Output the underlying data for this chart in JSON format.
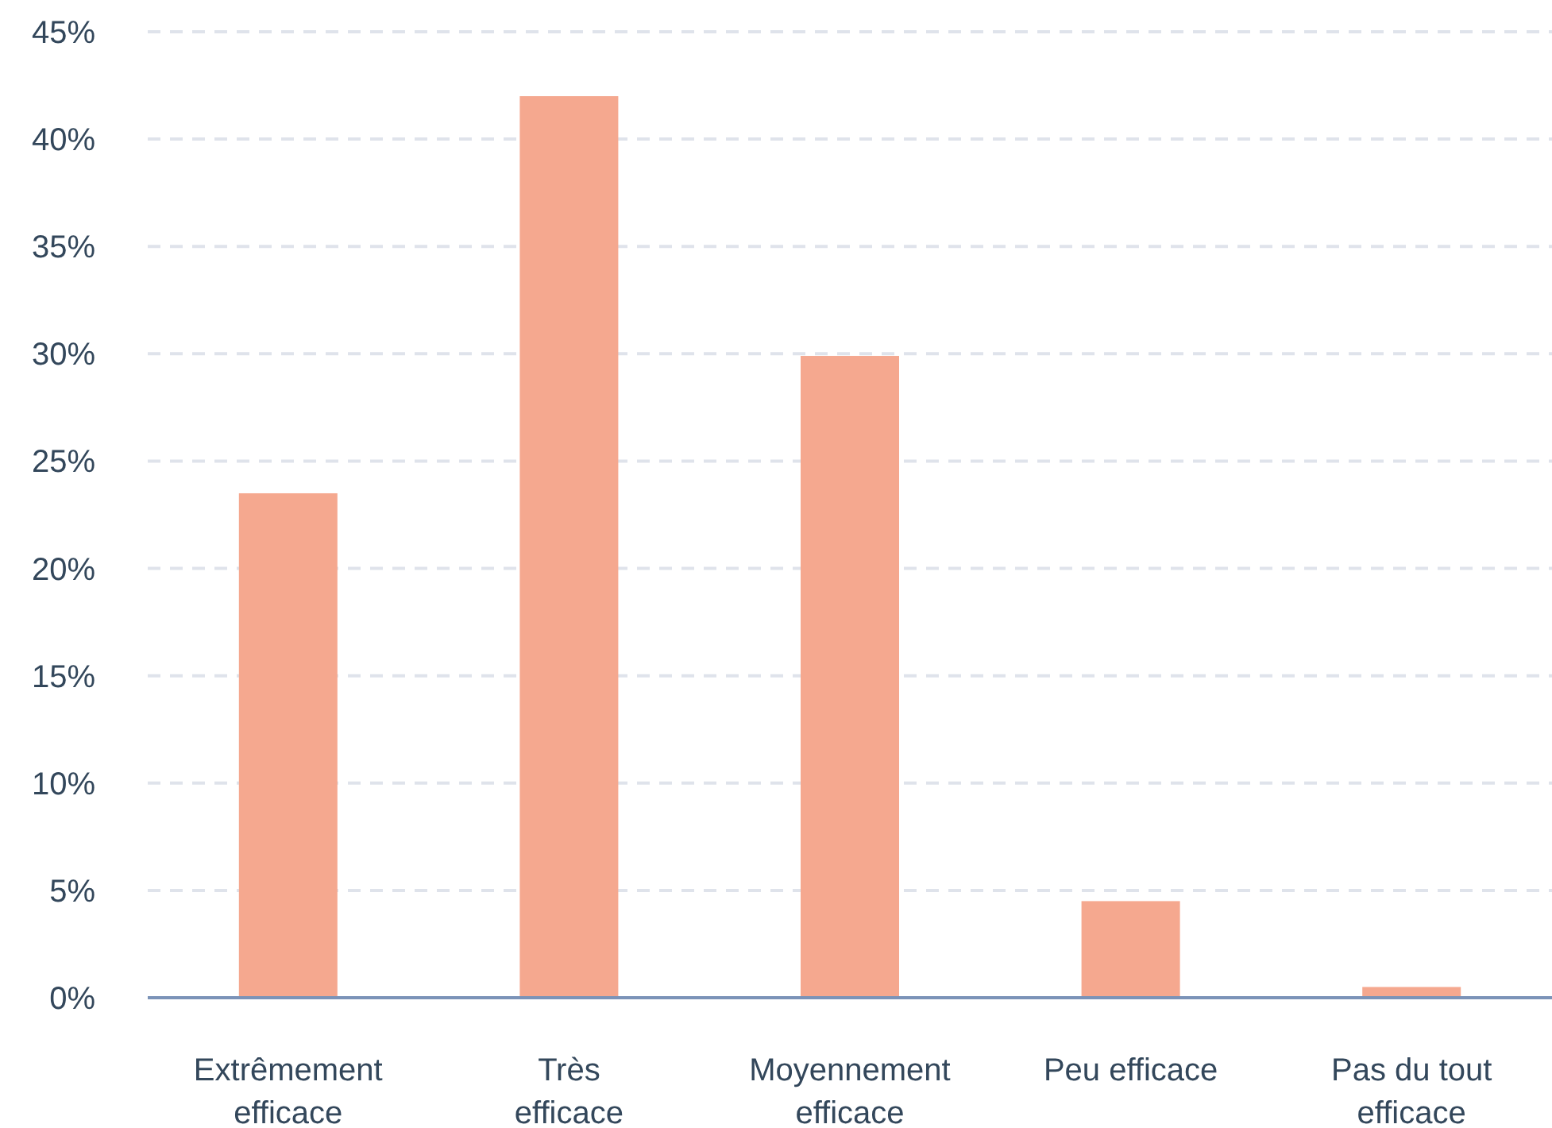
{
  "chart_data": {
    "type": "bar",
    "categories": [
      "Extrêmement efficace",
      "Très efficace",
      "Moyennement efficace",
      "Peu efficace",
      "Pas du tout efficace"
    ],
    "values": [
      23.5,
      42,
      29.9,
      4.5,
      0.5
    ],
    "color": "#f5a88f",
    "ylim": [
      0,
      45
    ],
    "yticks": [
      {
        "value": 0,
        "label": "0%"
      },
      {
        "value": 5,
        "label": "5%"
      },
      {
        "value": 10,
        "label": "10%"
      },
      {
        "value": 15,
        "label": "15%"
      },
      {
        "value": 20,
        "label": "20%"
      },
      {
        "value": 25,
        "label": "25%"
      },
      {
        "value": 30,
        "label": "30%"
      },
      {
        "value": 35,
        "label": "35%"
      },
      {
        "value": 40,
        "label": "40%"
      },
      {
        "value": 45,
        "label": "45%"
      }
    ],
    "grid": "y"
  }
}
